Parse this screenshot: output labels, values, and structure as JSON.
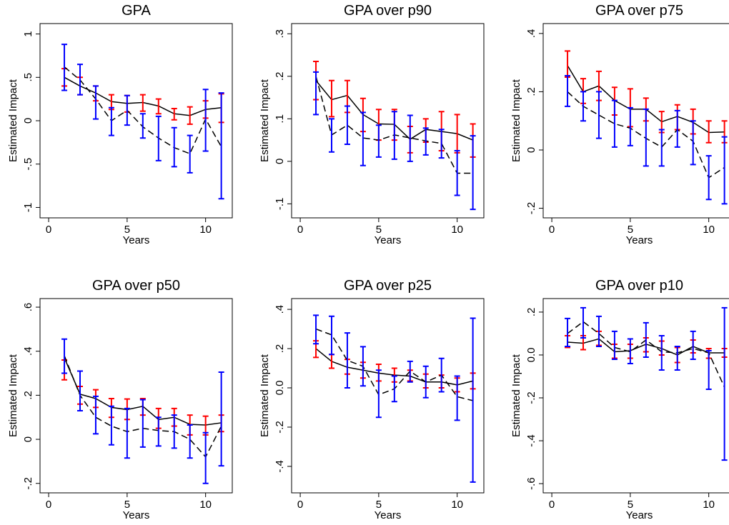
{
  "chart_data": [
    {
      "type": "line",
      "title": "GPA",
      "xlabel": "Years",
      "ylabel": "Estimated Impact",
      "x": [
        1,
        2,
        3,
        4,
        5,
        6,
        7,
        8,
        9,
        10,
        11
      ],
      "xlim": [
        -0.55,
        11.7
      ],
      "ylim": [
        -1.12,
        1.12
      ],
      "xticks": [
        0,
        5,
        10
      ],
      "yticks": [
        -1,
        {
          "value": -0.5,
          "label": "-.5"
        },
        0,
        {
          "value": 0.5,
          "label": ".5"
        },
        1
      ],
      "series": [
        {
          "color": "#000000",
          "dash": false,
          "err_color": "#ff0000",
          "values": [
            0.5,
            0.4,
            0.32,
            0.22,
            0.2,
            0.21,
            0.17,
            0.08,
            0.06,
            0.13,
            0.15
          ],
          "lower": [
            0.4,
            0.3,
            0.23,
            0.13,
            0.1,
            0.11,
            0.08,
            0.01,
            -0.04,
            0.03,
            -0.02
          ],
          "upper": [
            0.6,
            0.5,
            0.4,
            0.3,
            0.29,
            0.3,
            0.25,
            0.14,
            0.16,
            0.23,
            0.31
          ]
        },
        {
          "color": "#000000",
          "dash": true,
          "err_color": "#0000ff",
          "values": [
            0.62,
            0.47,
            0.25,
            0.0,
            0.12,
            -0.07,
            -0.2,
            -0.31,
            -0.38,
            0.02,
            -0.3
          ],
          "lower": [
            0.35,
            0.3,
            0.02,
            -0.17,
            -0.05,
            -0.2,
            -0.46,
            -0.53,
            -0.6,
            -0.35,
            -0.9
          ],
          "upper": [
            0.88,
            0.65,
            0.4,
            0.15,
            0.29,
            0.08,
            0.05,
            -0.08,
            -0.17,
            0.36,
            0.32
          ]
        }
      ]
    },
    {
      "type": "line",
      "title": "GPA over p90",
      "xlabel": "Years",
      "ylabel": "Estimated Impact",
      "x": [
        1,
        2,
        3,
        4,
        5,
        6,
        7,
        8,
        9,
        10,
        11
      ],
      "xlim": [
        -0.55,
        11.7
      ],
      "ylim": [
        -0.133,
        0.324
      ],
      "xticks": [
        0,
        5,
        10
      ],
      "yticks": [
        {
          "value": -0.1,
          "label": "-.1"
        },
        0,
        {
          "value": 0.1,
          "label": ".1"
        },
        {
          "value": 0.2,
          "label": ".2"
        },
        {
          "value": 0.3,
          "label": ".3"
        }
      ],
      "series": [
        {
          "color": "#000000",
          "dash": false,
          "err_color": "#ff0000",
          "values": [
            0.19,
            0.145,
            0.155,
            0.11,
            0.088,
            0.087,
            0.052,
            0.075,
            0.07,
            0.065,
            0.05
          ],
          "lower": [
            0.145,
            0.105,
            0.115,
            0.07,
            0.05,
            0.05,
            0.02,
            0.045,
            0.025,
            0.02,
            0.01
          ],
          "upper": [
            0.235,
            0.19,
            0.19,
            0.148,
            0.122,
            0.122,
            0.082,
            0.1,
            0.117,
            0.11,
            0.088
          ]
        },
        {
          "color": "#000000",
          "dash": true,
          "err_color": "#0000ff",
          "values": [
            0.2,
            0.062,
            0.085,
            0.055,
            0.05,
            0.062,
            0.055,
            0.048,
            0.042,
            -0.028,
            -0.028
          ],
          "lower": [
            0.11,
            0.022,
            0.04,
            -0.01,
            0.01,
            0.005,
            0.0,
            0.015,
            0.008,
            -0.08,
            -0.113
          ],
          "upper": [
            0.21,
            0.1,
            0.13,
            0.115,
            0.085,
            0.117,
            0.108,
            0.078,
            0.075,
            0.025,
            0.06
          ]
        }
      ]
    },
    {
      "type": "line",
      "title": "GPA over p75",
      "xlabel": "Years",
      "ylabel": "Estimated Impact",
      "x": [
        1,
        2,
        3,
        4,
        5,
        6,
        7,
        8,
        9,
        10,
        11
      ],
      "xlim": [
        -0.55,
        11.7
      ],
      "ylim": [
        -0.233,
        0.434
      ],
      "xticks": [
        0,
        5,
        10
      ],
      "yticks": [
        {
          "value": -0.2,
          "label": "-.2"
        },
        0,
        {
          "value": 0.2,
          "label": ".2"
        },
        {
          "value": 0.4,
          "label": ".4"
        }
      ],
      "series": [
        {
          "color": "#000000",
          "dash": false,
          "err_color": "#ff0000",
          "values": [
            0.29,
            0.2,
            0.22,
            0.17,
            0.14,
            0.14,
            0.097,
            0.115,
            0.095,
            0.06,
            0.062
          ],
          "lower": [
            0.25,
            0.16,
            0.17,
            0.12,
            0.08,
            0.1,
            0.06,
            0.07,
            0.055,
            0.025,
            0.025
          ],
          "upper": [
            0.34,
            0.245,
            0.27,
            0.215,
            0.21,
            0.178,
            0.132,
            0.155,
            0.14,
            0.1,
            0.1
          ]
        },
        {
          "color": "#000000",
          "dash": true,
          "err_color": "#0000ff",
          "values": [
            0.2,
            0.15,
            0.12,
            0.09,
            0.075,
            0.04,
            0.01,
            0.07,
            0.03,
            -0.095,
            -0.06
          ],
          "lower": [
            0.15,
            0.1,
            0.04,
            0.01,
            0.015,
            -0.055,
            -0.055,
            0.01,
            -0.05,
            -0.17,
            -0.185
          ],
          "upper": [
            0.255,
            0.2,
            0.2,
            0.17,
            0.145,
            0.14,
            0.07,
            0.135,
            0.1,
            -0.02,
            0.045
          ]
        }
      ]
    },
    {
      "type": "line",
      "title": "GPA over p50",
      "xlabel": "Years",
      "ylabel": "Estimated Impact",
      "x": [
        1,
        2,
        3,
        4,
        5,
        6,
        7,
        8,
        9,
        10,
        11
      ],
      "xlim": [
        -0.55,
        11.7
      ],
      "ylim": [
        -0.243,
        0.639
      ],
      "xticks": [
        0,
        5,
        10
      ],
      "yticks": [
        {
          "value": -0.2,
          "label": "-.2"
        },
        0,
        {
          "value": 0.2,
          "label": ".2"
        },
        {
          "value": 0.4,
          "label": ".4"
        },
        {
          "value": 0.6,
          "label": ".6"
        }
      ],
      "series": [
        {
          "color": "#000000",
          "dash": false,
          "err_color": "#ff0000",
          "values": [
            0.37,
            0.205,
            0.185,
            0.145,
            0.135,
            0.15,
            0.09,
            0.1,
            0.068,
            0.065,
            0.075
          ],
          "lower": [
            0.27,
            0.16,
            0.145,
            0.1,
            0.09,
            0.11,
            0.05,
            0.06,
            0.02,
            0.02,
            0.035
          ],
          "upper": [
            0.36,
            0.24,
            0.225,
            0.185,
            0.183,
            0.185,
            0.14,
            0.14,
            0.11,
            0.105,
            0.11
          ]
        },
        {
          "color": "#000000",
          "dash": true,
          "err_color": "#0000ff",
          "values": [
            0.38,
            0.2,
            0.1,
            0.06,
            0.035,
            0.05,
            0.04,
            0.035,
            0.0,
            -0.08,
            0.06
          ],
          "lower": [
            0.3,
            0.13,
            0.025,
            -0.025,
            -0.085,
            -0.035,
            -0.03,
            -0.04,
            -0.085,
            -0.2,
            -0.12
          ],
          "upper": [
            0.455,
            0.31,
            0.195,
            0.15,
            0.14,
            0.18,
            0.1,
            0.11,
            0.065,
            0.03,
            0.305
          ]
        }
      ]
    },
    {
      "type": "line",
      "title": "GPA over p25",
      "xlabel": "Years",
      "ylabel": "Estimated Impact",
      "x": [
        1,
        2,
        3,
        4,
        5,
        6,
        7,
        8,
        9,
        10,
        11
      ],
      "xlim": [
        -0.55,
        11.7
      ],
      "ylim": [
        -0.535,
        0.455
      ],
      "xticks": [
        0,
        5,
        10
      ],
      "yticks": [
        {
          "value": -0.4,
          "label": "-.4"
        },
        {
          "value": -0.2,
          "label": "-.2"
        },
        {
          "value": 0,
          "label": "0.0"
        },
        {
          "value": 0.2,
          "label": ".2"
        },
        {
          "value": 0.4,
          "label": ".4"
        }
      ],
      "series": [
        {
          "color": "#000000",
          "dash": false,
          "err_color": "#ff0000",
          "values": [
            0.2,
            0.135,
            0.105,
            0.09,
            0.075,
            0.065,
            0.06,
            0.03,
            0.03,
            0.015,
            0.035
          ],
          "lower": [
            0.155,
            0.1,
            0.07,
            0.05,
            0.035,
            0.03,
            0.035,
            0.0,
            0.0,
            -0.02,
            -0.005
          ],
          "upper": [
            0.24,
            0.17,
            0.145,
            0.13,
            0.12,
            0.1,
            0.09,
            0.07,
            0.065,
            0.05,
            0.075
          ]
        },
        {
          "color": "#000000",
          "dash": true,
          "err_color": "#0000ff",
          "values": [
            0.3,
            0.27,
            0.14,
            0.11,
            -0.035,
            -0.005,
            0.085,
            0.03,
            0.065,
            -0.045,
            -0.065
          ],
          "lower": [
            0.225,
            0.17,
            0.0,
            0.01,
            -0.15,
            -0.07,
            0.03,
            -0.05,
            -0.02,
            -0.165,
            -0.48
          ],
          "upper": [
            0.37,
            0.365,
            0.28,
            0.21,
            0.09,
            0.06,
            0.135,
            0.11,
            0.15,
            0.06,
            0.355
          ]
        }
      ]
    },
    {
      "type": "line",
      "title": "GPA over p10",
      "xlabel": "Years",
      "ylabel": "Estimated Impact",
      "x": [
        1,
        2,
        3,
        4,
        5,
        6,
        7,
        8,
        9,
        10,
        11
      ],
      "xlim": [
        -0.55,
        11.7
      ],
      "ylim": [
        -0.643,
        0.263
      ],
      "xticks": [
        0,
        5,
        10
      ],
      "yticks": [
        {
          "value": -0.6,
          "label": "-.6"
        },
        {
          "value": -0.4,
          "label": "-.4"
        },
        {
          "value": -0.2,
          "label": "-.2"
        },
        {
          "value": 0,
          "label": "0.0"
        },
        {
          "value": 0.2,
          "label": ".2"
        }
      ],
      "series": [
        {
          "color": "#000000",
          "dash": false,
          "err_color": "#ff0000",
          "values": [
            0.06,
            0.055,
            0.075,
            0.015,
            0.02,
            0.05,
            0.03,
            0.0,
            0.04,
            0.01,
            0.01
          ],
          "lower": [
            0.035,
            0.025,
            0.045,
            -0.015,
            -0.015,
            0.015,
            0.0,
            -0.035,
            0.01,
            -0.015,
            -0.01
          ],
          "upper": [
            0.09,
            0.09,
            0.11,
            0.05,
            0.05,
            0.08,
            0.065,
            0.035,
            0.07,
            0.03,
            0.03
          ]
        },
        {
          "color": "#000000",
          "dash": true,
          "err_color": "#0000ff",
          "values": [
            0.1,
            0.155,
            0.1,
            0.035,
            0.015,
            0.07,
            0.015,
            0.01,
            0.03,
            0.01,
            -0.15
          ],
          "lower": [
            0.04,
            0.08,
            0.04,
            -0.02,
            -0.04,
            -0.01,
            -0.07,
            -0.07,
            -0.02,
            -0.16,
            -0.49
          ],
          "upper": [
            0.17,
            0.22,
            0.18,
            0.11,
            0.075,
            0.15,
            0.09,
            0.04,
            0.11,
            0.02,
            0.22
          ]
        }
      ]
    }
  ]
}
